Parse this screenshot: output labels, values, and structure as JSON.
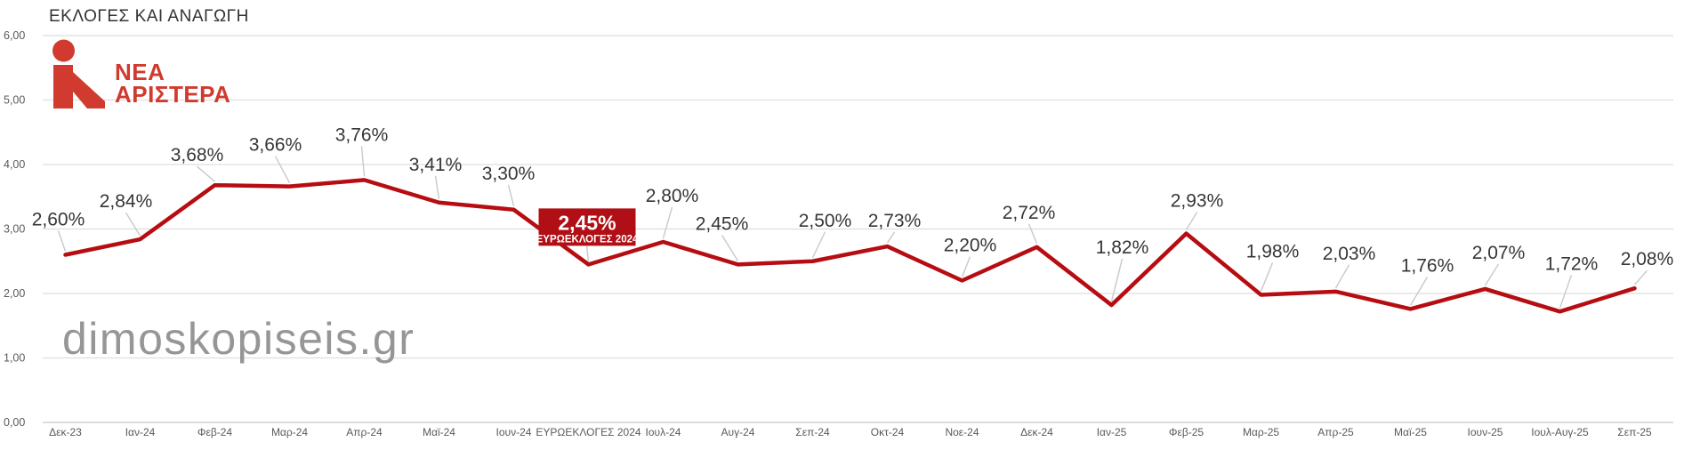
{
  "title": "ΕΚΛΟΓΕΣ ΚΑΙ ΑΝΑΓΩΓΗ",
  "logo": {
    "line1": "ΝΕΑ",
    "line2": "ΑΡΙΣΤΕΡΑ"
  },
  "watermark": "dimoskopiseis.gr",
  "colors": {
    "line": "#b60d12",
    "highlight_box": "#b00f16",
    "highlight_text": "#ffffff",
    "logo_red": "#d03a2f",
    "data_label": "#363636",
    "axis_label": "#5a5a5a",
    "gridline": "#dedede",
    "baseline": "#c6c6c6",
    "leader": "#c9c9c9",
    "watermark_gray": "#8e8e8e"
  },
  "chart_data": {
    "type": "line",
    "title": "ΕΚΛΟΓΕΣ ΚΑΙ ΑΝΑΓΩΓΗ",
    "series_name": "ΝΕΑ ΑΡΙΣΤΕΡΑ",
    "categories": [
      "Δεκ-23",
      "Ιαν-24",
      "Φεβ-24",
      "Μαρ-24",
      "Απρ-24",
      "Μαϊ-24",
      "Ιουν-24",
      "ΕΥΡΩΕΚΛΟΓΕΣ 2024",
      "Ιουλ-24",
      "Αυγ-24",
      "Σεπ-24",
      "Οκτ-24",
      "Νοε-24",
      "Δεκ-24",
      "Ιαν-25",
      "Φεβ-25",
      "Μαρ-25",
      "Απρ-25",
      "Μαϊ-25",
      "Ιουν-25",
      "Ιουλ-Αυγ-25",
      "Σεπ-25"
    ],
    "values": [
      2.6,
      2.84,
      3.68,
      3.66,
      3.76,
      3.41,
      3.3,
      2.45,
      2.8,
      2.45,
      2.5,
      2.73,
      2.2,
      2.72,
      1.82,
      2.93,
      1.98,
      2.03,
      1.76,
      2.07,
      1.72,
      2.08
    ],
    "point_labels": [
      "2,60%",
      "2,84%",
      "3,68%",
      "3,66%",
      "3,76%",
      "3,41%",
      "3,30%",
      "2,45%",
      "2,80%",
      "2,45%",
      "2,50%",
      "2,73%",
      "2,20%",
      "2,72%",
      "1,82%",
      "2,93%",
      "1,98%",
      "2,03%",
      "1,76%",
      "2,07%",
      "1,72%",
      "2,08%"
    ],
    "ylim": [
      0,
      6
    ],
    "yticks": [
      "0,00",
      "1,00",
      "2,00",
      "3,00",
      "4,00",
      "5,00",
      "6,00"
    ],
    "grid": true,
    "legend": "none",
    "highlight": {
      "index": 7,
      "label": "2,45%",
      "sublabel": "ΕΥΡΩΕΚΛΟΓΕΣ 2024"
    }
  }
}
